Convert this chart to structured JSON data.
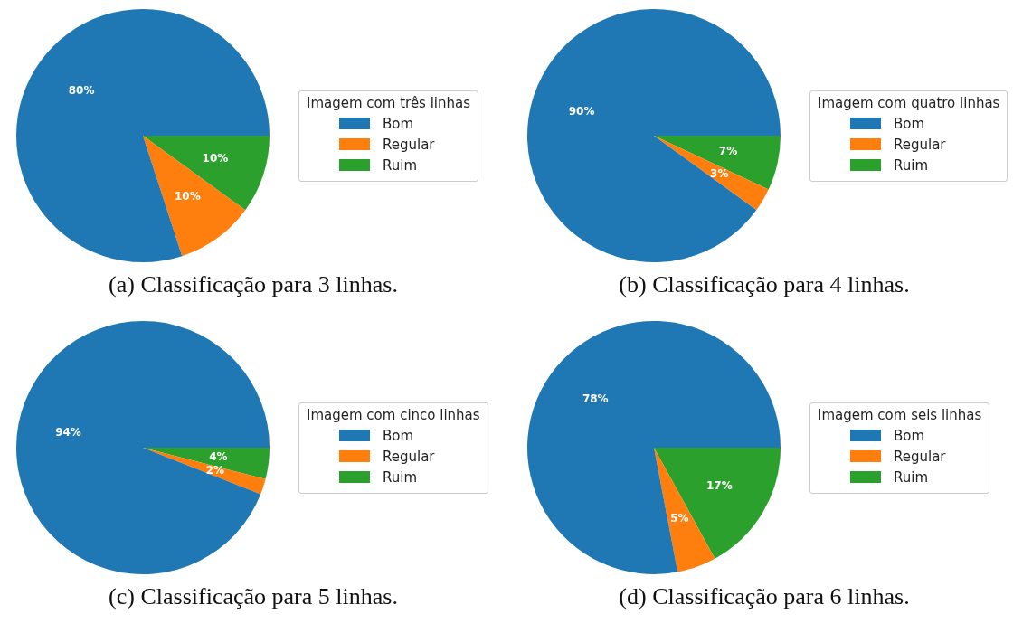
{
  "chart_data": [
    {
      "type": "pie",
      "legend_title": "Imagem com três linhas",
      "categories": [
        "Bom",
        "Regular",
        "Ruim"
      ],
      "values": [
        80,
        10,
        10
      ],
      "value_labels": [
        "80%",
        "10%",
        "10%"
      ],
      "colors": [
        "#1f77b4",
        "#ff7f0e",
        "#2ca02c"
      ],
      "legend": "right",
      "annotations": [
        "(a) Classificação para 3 linhas."
      ]
    },
    {
      "type": "pie",
      "legend_title": "Imagem com quatro linhas",
      "categories": [
        "Bom",
        "Regular",
        "Ruim"
      ],
      "values": [
        90,
        3,
        7
      ],
      "value_labels": [
        "90%",
        "3%",
        "7%"
      ],
      "colors": [
        "#1f77b4",
        "#ff7f0e",
        "#2ca02c"
      ],
      "legend": "right",
      "annotations": [
        "(b) Classificação para 4 linhas."
      ]
    },
    {
      "type": "pie",
      "legend_title": "Imagem com cinco linhas",
      "categories": [
        "Bom",
        "Regular",
        "Ruim"
      ],
      "values": [
        94,
        2,
        4
      ],
      "value_labels": [
        "94%",
        "2%",
        "4%"
      ],
      "colors": [
        "#1f77b4",
        "#ff7f0e",
        "#2ca02c"
      ],
      "legend": "right",
      "annotations": [
        "(c) Classificação para 5 linhas."
      ]
    },
    {
      "type": "pie",
      "legend_title": "Imagem com seis linhas",
      "categories": [
        "Bom",
        "Regular",
        "Ruim"
      ],
      "values": [
        78,
        5,
        17
      ],
      "value_labels": [
        "78%",
        "5%",
        "17%"
      ],
      "colors": [
        "#1f77b4",
        "#ff7f0e",
        "#2ca02c"
      ],
      "legend": "right",
      "annotations": [
        "(d) Classificação para 6 linhas."
      ]
    }
  ]
}
